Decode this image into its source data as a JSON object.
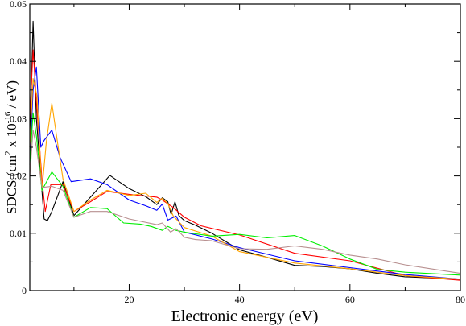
{
  "chart_data": {
    "type": "line",
    "xlabel": "Electronic energy (eV)",
    "ylabel": {
      "prefix": "SDCS (cm",
      "sup1": "2",
      "middle": " x 10",
      "sup2": "-16",
      "suffix": " / eV)"
    },
    "xlim": [
      2,
      80
    ],
    "ylim": [
      0,
      0.05
    ],
    "x_ticks": [
      20,
      40,
      60,
      80
    ],
    "x_tick_labels": [
      "20",
      "40",
      "60",
      "80"
    ],
    "y_ticks": [
      0,
      0.01,
      0.02,
      0.03,
      0.04,
      0.05
    ],
    "y_tick_labels": [
      "0",
      "0.01",
      "0.02",
      "0.03",
      "0.04",
      "0.05"
    ],
    "grid": false,
    "series": [
      {
        "color": "#000000",
        "points": [
          [
            2,
            0.025
          ],
          [
            2.6,
            0.047
          ],
          [
            3.2,
            0.03
          ],
          [
            4,
            0.02
          ],
          [
            4.6,
            0.0125
          ],
          [
            5.2,
            0.0122
          ],
          [
            6,
            0.0138
          ],
          [
            8,
            0.019
          ],
          [
            10,
            0.0131
          ],
          [
            13,
            0.0163
          ],
          [
            16.5,
            0.0201
          ],
          [
            20,
            0.0178
          ],
          [
            23,
            0.0164
          ],
          [
            25,
            0.015
          ],
          [
            26,
            0.0162
          ],
          [
            27,
            0.0155
          ],
          [
            27.6,
            0.0133
          ],
          [
            28.3,
            0.0155
          ],
          [
            29,
            0.0131
          ],
          [
            30,
            0.0122
          ],
          [
            32,
            0.0114
          ],
          [
            35,
            0.01
          ],
          [
            40,
            0.0071
          ],
          [
            45,
            0.0058
          ],
          [
            50,
            0.0044
          ],
          [
            55,
            0.0042
          ],
          [
            60,
            0.0038
          ],
          [
            65,
            0.003
          ],
          [
            70,
            0.0024
          ],
          [
            80,
            0.002
          ]
        ]
      },
      {
        "color": "#ff0000",
        "points": [
          [
            2,
            0.03
          ],
          [
            2.6,
            0.042
          ],
          [
            3.2,
            0.033
          ],
          [
            4.2,
            0.0195
          ],
          [
            4.8,
            0.0138
          ],
          [
            5.8,
            0.0185
          ],
          [
            8,
            0.0185
          ],
          [
            10,
            0.0138
          ],
          [
            13,
            0.0155
          ],
          [
            16,
            0.0173
          ],
          [
            20,
            0.0168
          ],
          [
            23,
            0.0165
          ],
          [
            25,
            0.0163
          ],
          [
            26,
            0.0158
          ],
          [
            28,
            0.0145
          ],
          [
            30,
            0.0128
          ],
          [
            33,
            0.0113
          ],
          [
            40,
            0.0097
          ],
          [
            50,
            0.0065
          ],
          [
            60,
            0.0052
          ],
          [
            70,
            0.0026
          ],
          [
            80,
            0.0018
          ]
        ]
      },
      {
        "color": "#0000ff",
        "points": [
          [
            2,
            0.022
          ],
          [
            2.6,
            0.035
          ],
          [
            3.2,
            0.039
          ],
          [
            4,
            0.025
          ],
          [
            4.6,
            0.0262
          ],
          [
            6,
            0.028
          ],
          [
            7.5,
            0.0232
          ],
          [
            9.5,
            0.019
          ],
          [
            13,
            0.0195
          ],
          [
            16,
            0.0185
          ],
          [
            20,
            0.0158
          ],
          [
            23,
            0.0148
          ],
          [
            25,
            0.014
          ],
          [
            26,
            0.0151
          ],
          [
            27,
            0.0123
          ],
          [
            28.5,
            0.013
          ],
          [
            30,
            0.0102
          ],
          [
            35,
            0.009
          ],
          [
            40,
            0.0075
          ],
          [
            50,
            0.0052
          ],
          [
            60,
            0.004
          ],
          [
            70,
            0.0028
          ],
          [
            80,
            0.002
          ]
        ]
      },
      {
        "color": "#ffa500",
        "points": [
          [
            2,
            0.025
          ],
          [
            2.6,
            0.037
          ],
          [
            3.3,
            0.034
          ],
          [
            4.2,
            0.0175
          ],
          [
            5,
            0.026
          ],
          [
            6,
            0.0327
          ],
          [
            7,
            0.026
          ],
          [
            8,
            0.0195
          ],
          [
            10,
            0.0138
          ],
          [
            13,
            0.0158
          ],
          [
            16,
            0.0175
          ],
          [
            20,
            0.0166
          ],
          [
            23,
            0.017
          ],
          [
            25,
            0.0154
          ],
          [
            26,
            0.0161
          ],
          [
            27,
            0.0152
          ],
          [
            28,
            0.013
          ],
          [
            30,
            0.011
          ],
          [
            35,
            0.0095
          ],
          [
            40,
            0.0068
          ],
          [
            50,
            0.0048
          ],
          [
            60,
            0.0038
          ],
          [
            70,
            0.0026
          ],
          [
            80,
            0.002
          ]
        ]
      },
      {
        "color": "#00ee00",
        "points": [
          [
            2,
            0.022
          ],
          [
            2.6,
            0.031
          ],
          [
            3.2,
            0.027
          ],
          [
            4.2,
            0.0175
          ],
          [
            6,
            0.0207
          ],
          [
            8,
            0.0182
          ],
          [
            10,
            0.0128
          ],
          [
            13,
            0.0145
          ],
          [
            16,
            0.0143
          ],
          [
            19,
            0.0118
          ],
          [
            22,
            0.0116
          ],
          [
            24,
            0.0112
          ],
          [
            26,
            0.0105
          ],
          [
            27,
            0.0112
          ],
          [
            28.5,
            0.0105
          ],
          [
            30,
            0.0102
          ],
          [
            35,
            0.0095
          ],
          [
            40,
            0.0098
          ],
          [
            45,
            0.0092
          ],
          [
            50,
            0.0096
          ],
          [
            55,
            0.0078
          ],
          [
            60,
            0.0055
          ],
          [
            65,
            0.0037
          ],
          [
            70,
            0.0032
          ],
          [
            80,
            0.0027
          ]
        ]
      },
      {
        "color": "#b89090",
        "points": [
          [
            2,
            0.02
          ],
          [
            2.6,
            0.028
          ],
          [
            3.2,
            0.025
          ],
          [
            4.2,
            0.018
          ],
          [
            6,
            0.0182
          ],
          [
            8,
            0.0175
          ],
          [
            10,
            0.0128
          ],
          [
            13,
            0.0138
          ],
          [
            16,
            0.0138
          ],
          [
            20,
            0.0125
          ],
          [
            25,
            0.0115
          ],
          [
            26,
            0.0118
          ],
          [
            27.5,
            0.0102
          ],
          [
            28.5,
            0.0108
          ],
          [
            30,
            0.0093
          ],
          [
            32,
            0.0089
          ],
          [
            35,
            0.0087
          ],
          [
            40,
            0.0073
          ],
          [
            45,
            0.0072
          ],
          [
            50,
            0.0078
          ],
          [
            55,
            0.0072
          ],
          [
            60,
            0.0062
          ],
          [
            65,
            0.0055
          ],
          [
            70,
            0.0045
          ],
          [
            80,
            0.003
          ]
        ]
      }
    ]
  }
}
